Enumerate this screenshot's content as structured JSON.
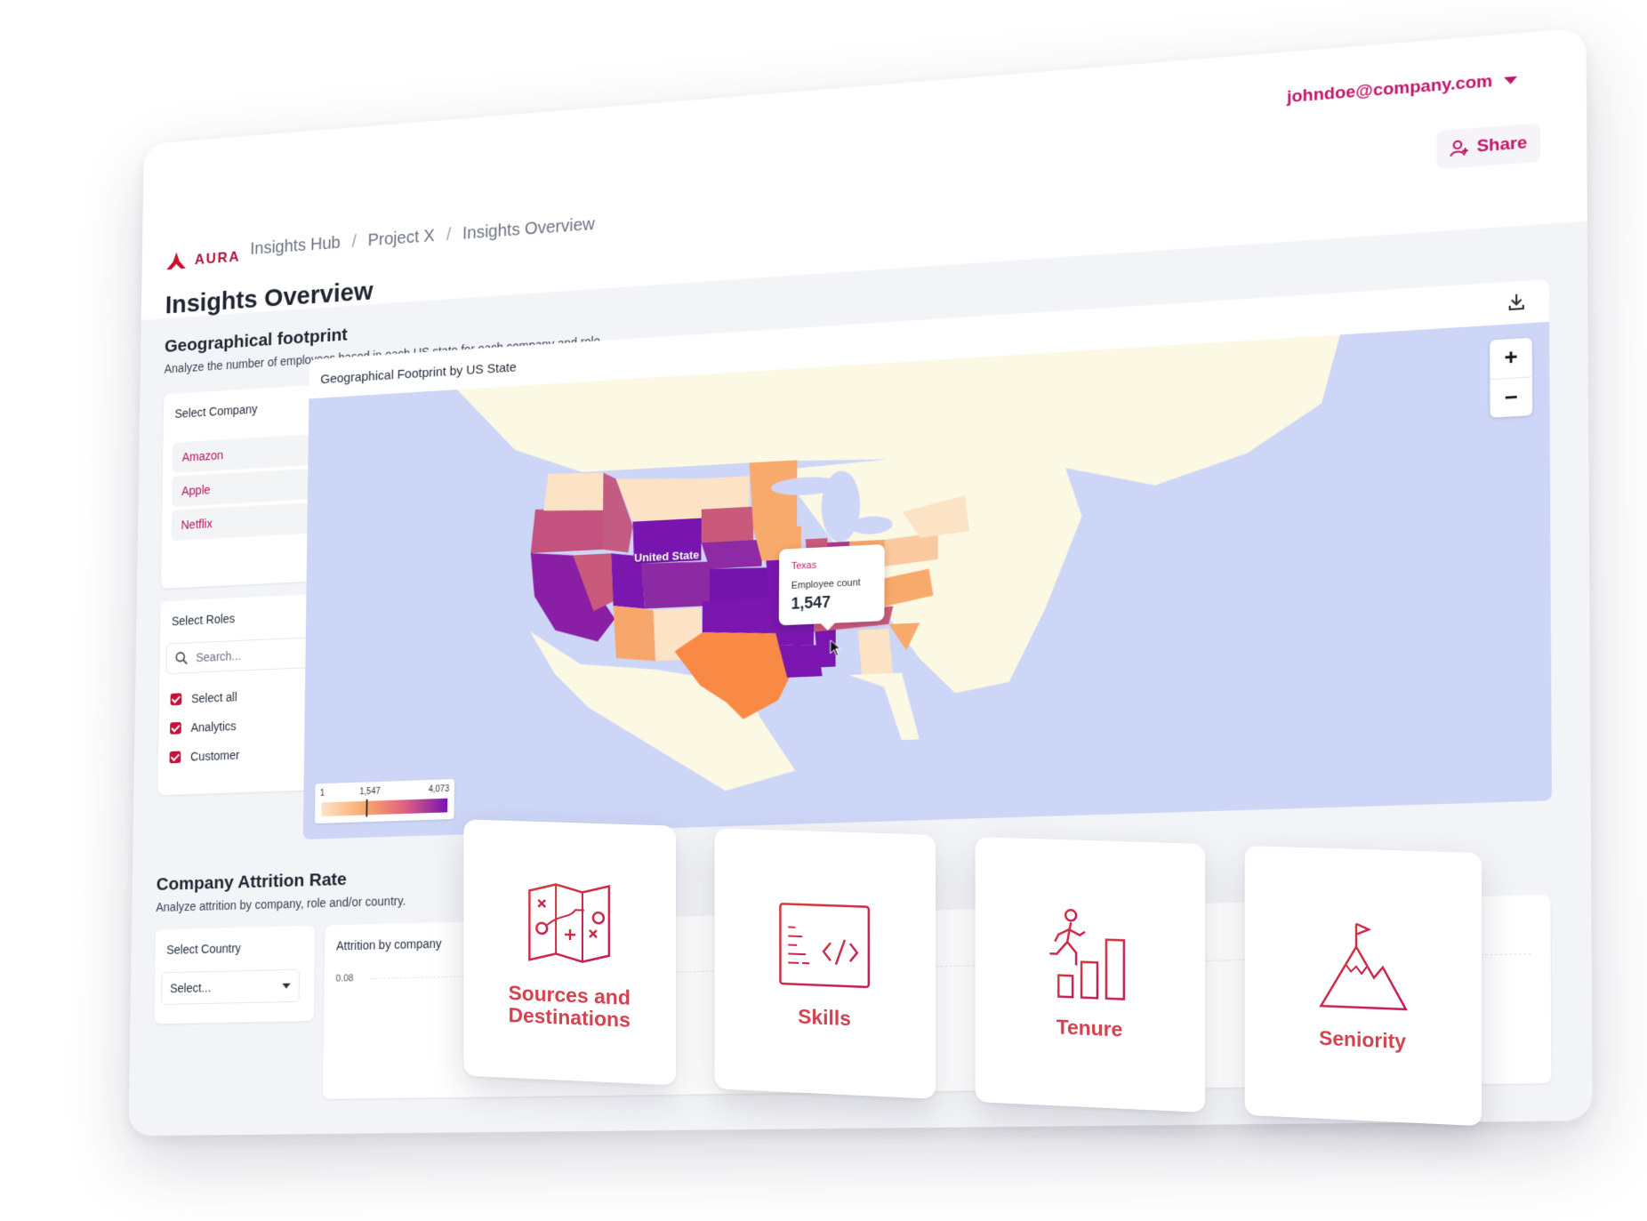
{
  "brand": {
    "name": "AURA",
    "accent": "#c01568",
    "logo_color": "#b1123b"
  },
  "breadcrumbs": [
    "Insights Hub",
    "Project X",
    "Insights Overview"
  ],
  "user": {
    "email": "johndoe@company.com"
  },
  "share_label": "Share",
  "page_title": "Insights Overview",
  "geo": {
    "title": "Geographical footprint",
    "description": "Analyze the number of employees based in each US state for each company and role.",
    "select_company_title": "Select Company",
    "companies": [
      "Amazon",
      "Apple",
      "Netflix"
    ],
    "select_roles_title": "Select Roles",
    "search_placeholder": "Search...",
    "roles": [
      "Select all",
      "Analytics",
      "Customer"
    ],
    "map": {
      "title": "Geographical Footprint by US State",
      "zoom_in": "+",
      "zoom_out": "−",
      "region_label": "United State",
      "legend": {
        "min": "1",
        "mid": "1,547",
        "max": "4,073"
      },
      "tooltip": {
        "state": "Texas",
        "label": "Employee count",
        "value": "1,547"
      }
    }
  },
  "attrition": {
    "title": "Company Attrition Rate",
    "description": "Analyze attrition by company, role and/or country.",
    "select_country_title": "Select Country",
    "select_placeholder": "Select...",
    "chart_title": "Attrition by company",
    "y_tick": "0.08"
  },
  "cards": [
    {
      "label": "Sources and Destinations",
      "icon": "map-route-icon"
    },
    {
      "label": "Skills",
      "icon": "code-window-icon"
    },
    {
      "label": "Tenure",
      "icon": "climbing-steps-icon"
    },
    {
      "label": "Seniority",
      "icon": "mountain-flag-icon"
    }
  ]
}
